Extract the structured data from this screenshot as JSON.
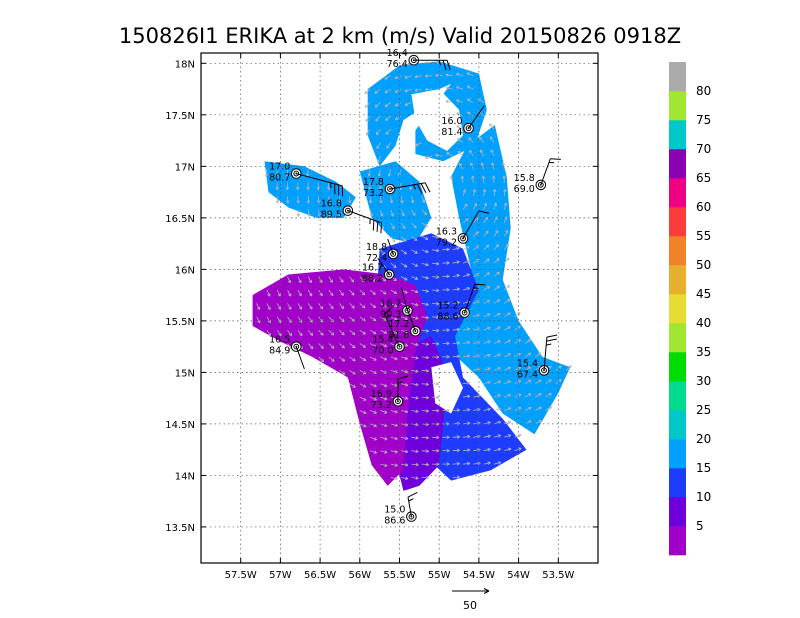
{
  "chart_data": {
    "type": "heatmap",
    "title": "150826I1 ERIKA at 2 km (m/s) Valid 20150826 0918Z",
    "x_range": [
      -58.0,
      -53.0
    ],
    "y_range": [
      13.15,
      18.1
    ],
    "x_ticks": [
      {
        "value": -57.5,
        "label": "57.5W"
      },
      {
        "value": -57.0,
        "label": "57W"
      },
      {
        "value": -56.5,
        "label": "56.5W"
      },
      {
        "value": -56.0,
        "label": "56W"
      },
      {
        "value": -55.5,
        "label": "55.5W"
      },
      {
        "value": -55.0,
        "label": "55W"
      },
      {
        "value": -54.5,
        "label": "54.5W"
      },
      {
        "value": -54.0,
        "label": "54W"
      },
      {
        "value": -53.5,
        "label": "53.5W"
      }
    ],
    "y_ticks": [
      {
        "value": 13.5,
        "label": "13.5N"
      },
      {
        "value": 14.0,
        "label": "14N"
      },
      {
        "value": 14.5,
        "label": "14.5N"
      },
      {
        "value": 15.0,
        "label": "15N"
      },
      {
        "value": 15.5,
        "label": "15.5N"
      },
      {
        "value": 16.0,
        "label": "16N"
      },
      {
        "value": 16.5,
        "label": "16.5N"
      },
      {
        "value": 17.0,
        "label": "17N"
      },
      {
        "value": 17.5,
        "label": "17.5N"
      },
      {
        "value": 18.0,
        "label": "18N"
      }
    ],
    "grid": true,
    "colorbar": {
      "levels": [
        "5",
        "10",
        "15",
        "20",
        "25",
        "30",
        "35",
        "40",
        "45",
        "50",
        "55",
        "60",
        "65",
        "70",
        "75",
        "80"
      ],
      "colors": [
        "#a000c8",
        "#6e00dc",
        "#1e3cff",
        "#00a0ff",
        "#00c8c8",
        "#00dc8c",
        "#00dc00",
        "#a0e632",
        "#e6dc32",
        "#e6af2d",
        "#f08228",
        "#fa3c3c",
        "#f00082",
        "#8c00b4",
        "#00c8c8",
        "#a0e632",
        "#aaaaaa"
      ]
    },
    "wind_field": {
      "regions": [
        {
          "name": "north-arc",
          "level": 20,
          "polygon": [
            [
              -55.9,
              17.75
            ],
            [
              -55.5,
              17.98
            ],
            [
              -55.0,
              18.02
            ],
            [
              -54.5,
              17.9
            ],
            [
              -54.4,
              17.55
            ],
            [
              -54.55,
              17.2
            ],
            [
              -54.95,
              17.05
            ],
            [
              -55.3,
              17.12
            ],
            [
              -55.3,
              17.35
            ],
            [
              -55.05,
              17.6
            ],
            [
              -54.85,
              17.8
            ],
            [
              -55.0,
              17.75
            ],
            [
              -55.25,
              17.55
            ],
            [
              -55.45,
              17.45
            ],
            [
              -55.55,
              17.2
            ],
            [
              -55.75,
              17.0
            ],
            [
              -55.9,
              17.3
            ]
          ]
        },
        {
          "name": "east-band",
          "level": 20,
          "polygon": [
            [
              -54.65,
              17.2
            ],
            [
              -54.3,
              17.4
            ],
            [
              -54.15,
              16.9
            ],
            [
              -54.1,
              16.4
            ],
            [
              -54.2,
              15.9
            ],
            [
              -54.0,
              15.5
            ],
            [
              -53.7,
              15.15
            ],
            [
              -53.35,
              15.05
            ],
            [
              -53.5,
              14.8
            ],
            [
              -53.8,
              14.4
            ],
            [
              -54.2,
              14.6
            ],
            [
              -54.5,
              14.95
            ],
            [
              -54.85,
              15.2
            ],
            [
              -54.8,
              15.6
            ],
            [
              -54.6,
              16.0
            ],
            [
              -54.75,
              16.5
            ],
            [
              -54.85,
              16.9
            ]
          ]
        },
        {
          "name": "west-blob",
          "level": 20,
          "polygon": [
            [
              -57.2,
              17.05
            ],
            [
              -56.7,
              17.0
            ],
            [
              -56.3,
              16.85
            ],
            [
              -56.05,
              16.7
            ],
            [
              -56.2,
              16.5
            ],
            [
              -56.55,
              16.5
            ],
            [
              -56.9,
              16.6
            ],
            [
              -57.15,
              16.75
            ]
          ]
        },
        {
          "name": "center-north",
          "level": 20,
          "polygon": [
            [
              -56.0,
              16.95
            ],
            [
              -55.55,
              17.05
            ],
            [
              -55.25,
              16.85
            ],
            [
              -55.1,
              16.5
            ],
            [
              -55.3,
              16.25
            ],
            [
              -55.6,
              16.3
            ],
            [
              -55.85,
              16.5
            ]
          ]
        },
        {
          "name": "center-body",
          "level": 15,
          "polygon": [
            [
              -55.75,
              16.2
            ],
            [
              -55.1,
              16.35
            ],
            [
              -54.7,
              16.2
            ],
            [
              -54.5,
              15.8
            ],
            [
              -54.8,
              15.35
            ],
            [
              -54.7,
              14.95
            ],
            [
              -54.2,
              14.55
            ],
            [
              -53.9,
              14.25
            ],
            [
              -54.35,
              14.05
            ],
            [
              -54.85,
              13.95
            ],
            [
              -55.2,
              14.2
            ],
            [
              -55.35,
              14.7
            ],
            [
              -55.6,
              15.1
            ],
            [
              -55.8,
              15.6
            ]
          ]
        },
        {
          "name": "south-tail",
          "level": 10,
          "polygon": [
            [
              -55.5,
              15.2
            ],
            [
              -55.1,
              15.35
            ],
            [
              -54.9,
              15.0
            ],
            [
              -54.95,
              14.5
            ],
            [
              -55.0,
              14.1
            ],
            [
              -55.25,
              13.9
            ],
            [
              -55.45,
              13.85
            ],
            [
              -55.6,
              14.3
            ],
            [
              -55.7,
              14.8
            ]
          ]
        },
        {
          "name": "west-core",
          "level": 5,
          "polygon": [
            [
              -57.35,
              15.75
            ],
            [
              -56.9,
              15.95
            ],
            [
              -56.2,
              16.0
            ],
            [
              -55.65,
              15.95
            ],
            [
              -55.3,
              15.85
            ],
            [
              -55.15,
              15.55
            ],
            [
              -55.3,
              15.2
            ],
            [
              -55.4,
              14.6
            ],
            [
              -55.45,
              14.05
            ],
            [
              -55.65,
              13.9
            ],
            [
              -55.85,
              14.1
            ],
            [
              -56.0,
              14.5
            ],
            [
              -56.15,
              14.95
            ],
            [
              -56.6,
              15.15
            ],
            [
              -57.0,
              15.3
            ],
            [
              -57.35,
              15.45
            ]
          ]
        }
      ],
      "voids": [
        {
          "name": "eye",
          "polygon": [
            [
              -55.35,
              17.7
            ],
            [
              -55.0,
              17.75
            ],
            [
              -54.75,
              17.55
            ],
            [
              -54.7,
              17.3
            ],
            [
              -54.9,
              17.15
            ],
            [
              -55.15,
              17.25
            ],
            [
              -55.3,
              17.45
            ]
          ]
        },
        {
          "name": "east-gap",
          "polygon": [
            [
              -55.1,
              15.05
            ],
            [
              -54.85,
              15.1
            ],
            [
              -54.7,
              14.85
            ],
            [
              -54.85,
              14.6
            ],
            [
              -55.05,
              14.7
            ]
          ]
        }
      ]
    },
    "reference_vector": {
      "label": "50"
    },
    "observations": [
      {
        "lon": -55.32,
        "lat": 18.03,
        "top": "16.4",
        "bottom": "76.4",
        "barb_angle": 90,
        "barb_len": 0.42,
        "flags": 0,
        "full": 2,
        "half": 1
      },
      {
        "lon": -54.63,
        "lat": 17.37,
        "top": "16.0",
        "bottom": "81.4",
        "barb_angle": 145,
        "barb_len": 0.35,
        "flags": 0,
        "full": 0,
        "half": 0
      },
      {
        "lon": -56.8,
        "lat": 16.93,
        "top": "17.0",
        "bottom": "80.7",
        "barb_angle": 75,
        "barb_len": 0.6,
        "flags": 0,
        "full": 3,
        "half": 1
      },
      {
        "lon": -55.62,
        "lat": 16.78,
        "top": "17.8",
        "bottom": "73.2",
        "barb_angle": 100,
        "barb_len": 0.45,
        "flags": 0,
        "full": 3,
        "half": 1
      },
      {
        "lon": -56.15,
        "lat": 16.57,
        "top": "16.8",
        "bottom": "89.5",
        "barb_angle": 70,
        "barb_len": 0.45,
        "flags": 0,
        "full": 3,
        "half": 1
      },
      {
        "lon": -53.72,
        "lat": 16.82,
        "top": "15.8",
        "bottom": "69.0",
        "barb_angle": 160,
        "barb_len": 0.35,
        "flags": 0,
        "full": 1,
        "half": 1
      },
      {
        "lon": -54.7,
        "lat": 16.3,
        "top": "16.3",
        "bottom": "79.2",
        "barb_angle": 150,
        "barb_len": 0.4,
        "flags": 0,
        "full": 1,
        "half": 0
      },
      {
        "lon": -55.58,
        "lat": 16.15,
        "top": "18.8",
        "bottom": "72.4",
        "barb_angle": 200,
        "barb_len": 0.2,
        "flags": 0,
        "full": 0,
        "half": 0
      },
      {
        "lon": -55.63,
        "lat": 15.95,
        "top": "16.7",
        "bottom": "88.2",
        "barb_angle": 215,
        "barb_len": 0.25,
        "flags": 0,
        "full": 0,
        "half": 0
      },
      {
        "lon": -55.4,
        "lat": 15.6,
        "top": "16.7",
        "bottom": "90.3",
        "barb_angle": 195,
        "barb_len": 0.3,
        "flags": 0,
        "full": 0,
        "half": 0
      },
      {
        "lon": -54.68,
        "lat": 15.58,
        "top": "15.2",
        "bottom": "88.6",
        "barb_angle": 160,
        "barb_len": 0.38,
        "flags": 0,
        "full": 1,
        "half": 1
      },
      {
        "lon": -55.3,
        "lat": 15.4,
        "top": "17.2",
        "bottom": "81.8",
        "barb_angle": 200,
        "barb_len": 0.3,
        "flags": 0,
        "full": 0,
        "half": 1
      },
      {
        "lon": -55.5,
        "lat": 15.25,
        "top": "15.4",
        "bottom": "70.0",
        "barb_angle": 205,
        "barb_len": 0.45,
        "flags": 0,
        "full": 1,
        "half": 1
      },
      {
        "lon": -56.8,
        "lat": 15.25,
        "top": "16.5",
        "bottom": "84.9",
        "barb_angle": 20,
        "barb_len": 0.3,
        "flags": 0,
        "full": 0,
        "half": 0
      },
      {
        "lon": -53.68,
        "lat": 15.02,
        "top": "15.4",
        "bottom": "67.4",
        "barb_angle": 175,
        "barb_len": 0.42,
        "flags": 0,
        "full": 2,
        "half": 1
      },
      {
        "lon": -55.52,
        "lat": 14.72,
        "top": "16.9",
        "bottom": "73.2",
        "barb_angle": 180,
        "barb_len": 0.28,
        "flags": 0,
        "full": 1,
        "half": 1
      },
      {
        "lon": -55.35,
        "lat": 13.6,
        "top": "15.0",
        "bottom": "86.6",
        "barb_angle": 190,
        "barb_len": 0.25,
        "flags": 0,
        "full": 1,
        "half": 1
      }
    ]
  }
}
